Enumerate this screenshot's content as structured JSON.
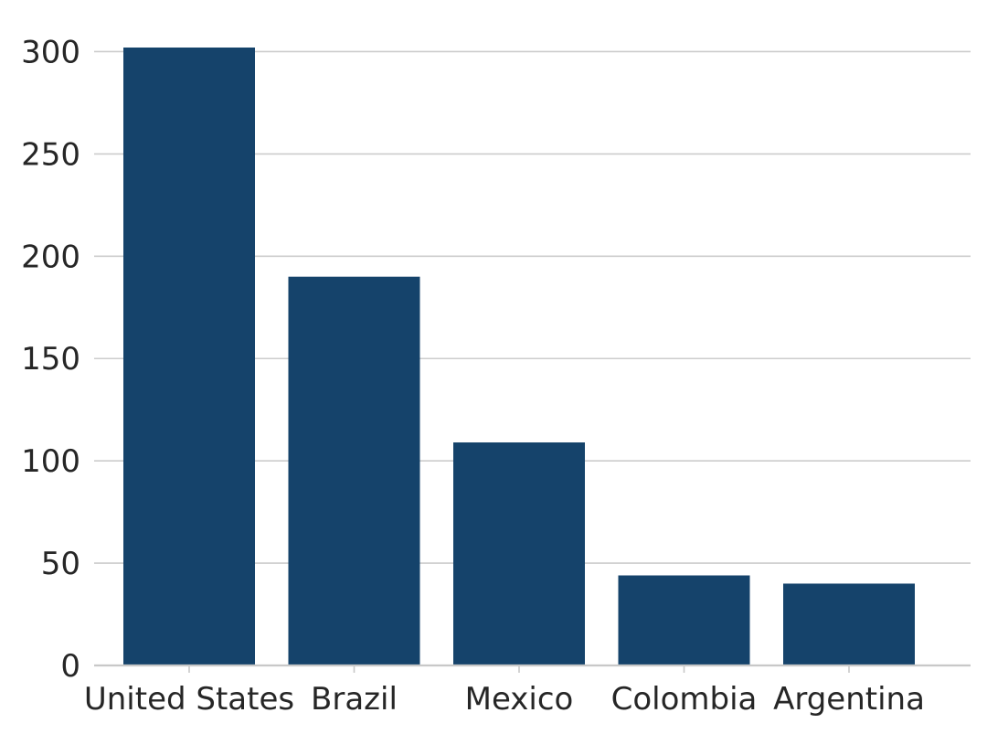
{
  "chart_data": {
    "type": "bar",
    "categories": [
      "United States",
      "Brazil",
      "Mexico",
      "Colombia",
      "Argentina"
    ],
    "values": [
      302,
      190,
      109,
      44,
      40
    ],
    "title": "",
    "xlabel": "",
    "ylabel": "",
    "ylim": [
      0,
      302
    ],
    "yticks": [
      0,
      50,
      100,
      150,
      200,
      250,
      300
    ],
    "grid": "horizontal",
    "colors": {
      "bar": "#15436b",
      "grid": "#cccccc",
      "text": "#262626"
    }
  }
}
